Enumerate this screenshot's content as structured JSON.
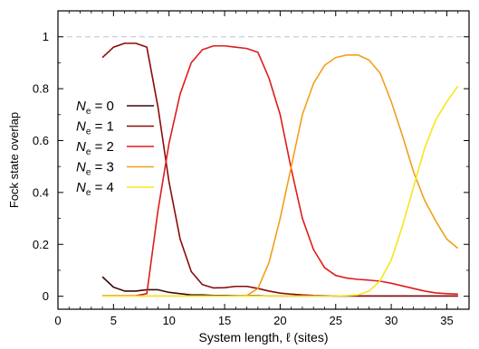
{
  "chart_data": {
    "type": "line",
    "xlabel": "System length, ℓ (sites)",
    "ylabel": "Fock state overlap",
    "xlim": [
      0,
      37
    ],
    "ylim": [
      -0.05,
      1.1
    ],
    "x_ticks": [
      0,
      5,
      10,
      15,
      20,
      25,
      30,
      35
    ],
    "y_ticks": [
      0,
      0.2,
      0.4,
      0.6,
      0.8,
      1
    ],
    "y_tick_labels": [
      "0",
      "0.2",
      "0.4",
      "0.6",
      "0.8",
      "1"
    ],
    "reference_line": 1,
    "grid": false,
    "legend_position": "left",
    "series": [
      {
        "name": "N_e = 0",
        "legend_label": {
          "symbol": "N",
          "sub": "e",
          "rest": " = 0"
        },
        "color": "#3a0a0a",
        "x": [
          4,
          5,
          6,
          7,
          8,
          9,
          10,
          11,
          12,
          13,
          14,
          15,
          16,
          17,
          18,
          19,
          20,
          21,
          22,
          23,
          24,
          25,
          26,
          27,
          28,
          29,
          30,
          31,
          32,
          33,
          34,
          35,
          36
        ],
        "y": [
          0.075,
          0.035,
          0.02,
          0.02,
          0.025,
          0.025,
          0.015,
          0.01,
          0.005,
          0.005,
          0.003,
          0.003,
          0.002,
          0.002,
          0.002,
          0.001,
          0.001,
          0.001,
          0.001,
          0.001,
          0.001,
          0.001,
          0.001,
          0.001,
          0.001,
          0.001,
          0.001,
          0.001,
          0.001,
          0.001,
          0.001,
          0.001,
          0.001
        ]
      },
      {
        "name": "N_e = 1",
        "legend_label": {
          "symbol": "N",
          "sub": "e",
          "rest": " = 1"
        },
        "color": "#8b0a0a",
        "x": [
          4,
          5,
          6,
          7,
          8,
          9,
          10,
          11,
          12,
          13,
          14,
          15,
          16,
          17,
          18,
          19,
          20,
          21,
          22,
          23,
          24,
          25,
          26,
          27,
          28,
          29,
          30,
          31,
          32,
          33,
          34,
          35,
          36
        ],
        "y": [
          0.92,
          0.96,
          0.975,
          0.975,
          0.96,
          0.73,
          0.44,
          0.22,
          0.095,
          0.045,
          0.032,
          0.033,
          0.038,
          0.038,
          0.03,
          0.02,
          0.012,
          0.008,
          0.005,
          0.003,
          0.002,
          0.001,
          0.001,
          0.001,
          0.001,
          0.001,
          0.001,
          0.001,
          0.001,
          0.001,
          0.001,
          0.001,
          0.001
        ]
      },
      {
        "name": "N_e = 2",
        "legend_label": {
          "symbol": "N",
          "sub": "e",
          "rest": " = 2"
        },
        "color": "#e01b1b",
        "x": [
          4,
          5,
          6,
          7,
          8,
          9,
          10,
          11,
          12,
          13,
          14,
          15,
          16,
          17,
          18,
          19,
          20,
          21,
          22,
          23,
          24,
          25,
          26,
          27,
          28,
          29,
          30,
          31,
          32,
          33,
          34,
          35,
          36
        ],
        "y": [
          0.002,
          0.002,
          0.002,
          0.002,
          0.01,
          0.33,
          0.59,
          0.78,
          0.9,
          0.95,
          0.965,
          0.965,
          0.96,
          0.955,
          0.94,
          0.84,
          0.7,
          0.49,
          0.3,
          0.18,
          0.11,
          0.08,
          0.07,
          0.065,
          0.062,
          0.058,
          0.05,
          0.04,
          0.03,
          0.02,
          0.013,
          0.01,
          0.008
        ]
      },
      {
        "name": "N_e = 3",
        "legend_label": {
          "symbol": "N",
          "sub": "e",
          "rest": " = 3"
        },
        "color": "#f0a018",
        "x": [
          4,
          5,
          6,
          7,
          8,
          9,
          10,
          11,
          12,
          13,
          14,
          15,
          16,
          17,
          18,
          19,
          20,
          21,
          22,
          23,
          24,
          25,
          26,
          27,
          28,
          29,
          30,
          31,
          32,
          33,
          34,
          35,
          36
        ],
        "y": [
          0.001,
          0.001,
          0.001,
          0.001,
          0.001,
          0.001,
          0.001,
          0.001,
          0.001,
          0.001,
          0.001,
          0.001,
          0.001,
          0.003,
          0.03,
          0.13,
          0.3,
          0.5,
          0.7,
          0.82,
          0.89,
          0.92,
          0.93,
          0.93,
          0.91,
          0.86,
          0.75,
          0.62,
          0.48,
          0.37,
          0.29,
          0.22,
          0.185
        ]
      },
      {
        "name": "N_e = 4",
        "legend_label": {
          "symbol": "N",
          "sub": "e",
          "rest": " = 4"
        },
        "color": "#f5e61c",
        "x": [
          4,
          5,
          6,
          7,
          8,
          9,
          10,
          11,
          12,
          13,
          14,
          15,
          16,
          17,
          18,
          19,
          20,
          21,
          22,
          23,
          24,
          25,
          26,
          27,
          28,
          29,
          30,
          31,
          32,
          33,
          34,
          35,
          36
        ],
        "y": [
          0.001,
          0.001,
          0.001,
          0.001,
          0.001,
          0.001,
          0.001,
          0.001,
          0.001,
          0.001,
          0.001,
          0.001,
          0.001,
          0.001,
          0.001,
          0.001,
          0.001,
          0.001,
          0.001,
          0.001,
          0.001,
          0.001,
          0.002,
          0.005,
          0.02,
          0.06,
          0.14,
          0.27,
          0.42,
          0.57,
          0.68,
          0.75,
          0.81
        ]
      }
    ]
  }
}
